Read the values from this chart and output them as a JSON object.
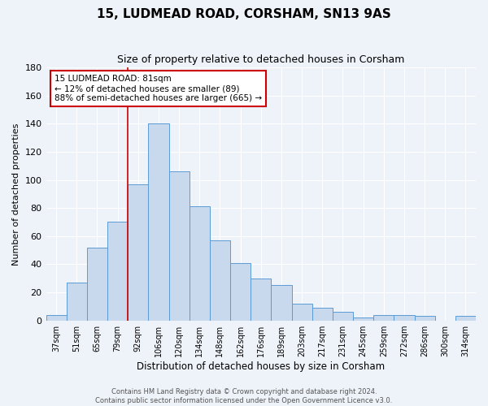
{
  "title": "15, LUDMEAD ROAD, CORSHAM, SN13 9AS",
  "subtitle": "Size of property relative to detached houses in Corsham",
  "xlabel": "Distribution of detached houses by size in Corsham",
  "ylabel": "Number of detached properties",
  "bar_labels": [
    "37sqm",
    "51sqm",
    "65sqm",
    "79sqm",
    "92sqm",
    "106sqm",
    "120sqm",
    "134sqm",
    "148sqm",
    "162sqm",
    "176sqm",
    "189sqm",
    "203sqm",
    "217sqm",
    "231sqm",
    "245sqm",
    "259sqm",
    "272sqm",
    "286sqm",
    "300sqm",
    "314sqm"
  ],
  "bar_values": [
    4,
    27,
    52,
    70,
    97,
    140,
    106,
    81,
    57,
    41,
    30,
    25,
    12,
    9,
    6,
    2,
    4,
    4,
    3,
    0,
    3
  ],
  "bar_color": "#c9d9ed",
  "bar_edge_color": "#5b9bd5",
  "ylim": [
    0,
    180
  ],
  "yticks": [
    0,
    20,
    40,
    60,
    80,
    100,
    120,
    140,
    160,
    180
  ],
  "vline_x": 3.5,
  "vline_color": "#cc0000",
  "annotation_title": "15 LUDMEAD ROAD: 81sqm",
  "annotation_line1": "← 12% of detached houses are smaller (89)",
  "annotation_line2": "88% of semi-detached houses are larger (665) →",
  "annotation_box_color": "#ffffff",
  "annotation_box_edge": "#cc0000",
  "footer1": "Contains HM Land Registry data © Crown copyright and database right 2024.",
  "footer2": "Contains public sector information licensed under the Open Government Licence v3.0.",
  "background_color": "#eef2f9",
  "grid_color": "#ffffff",
  "title_fontsize": 11,
  "subtitle_fontsize": 9
}
